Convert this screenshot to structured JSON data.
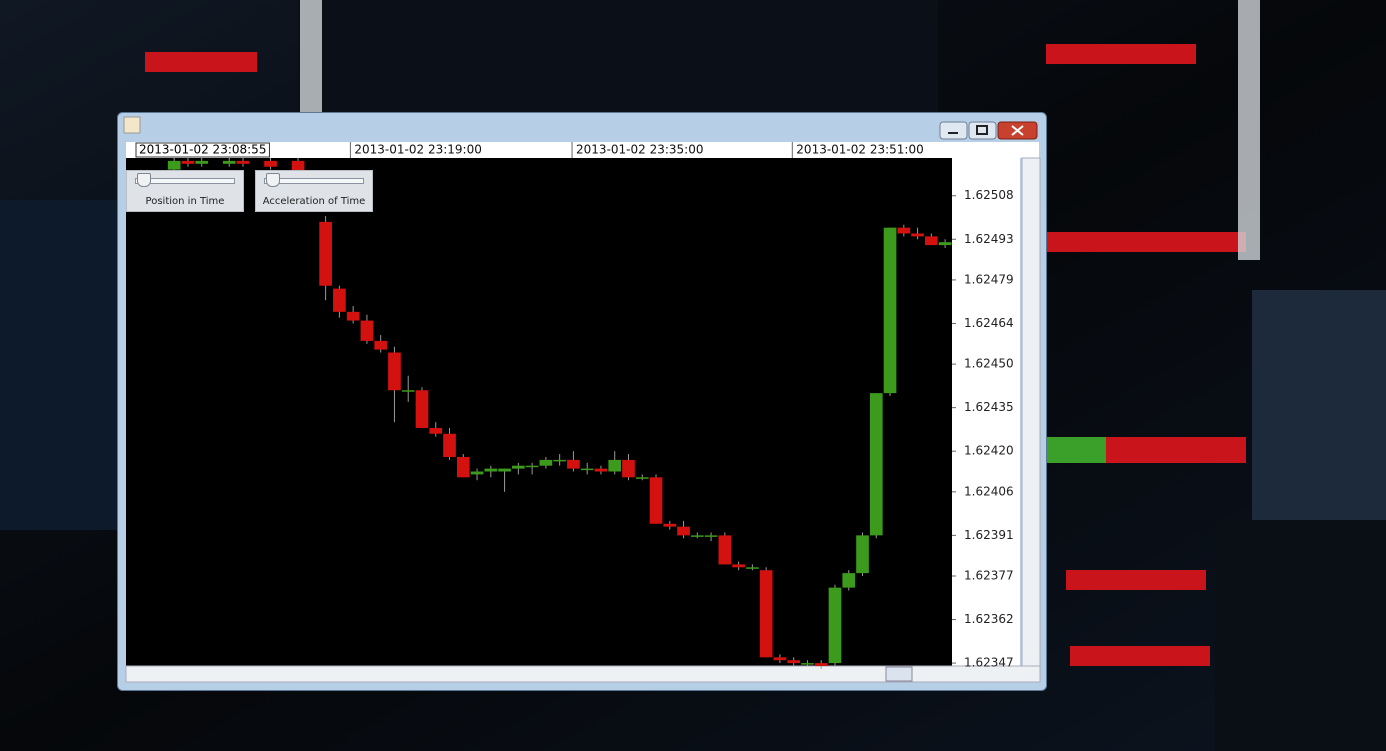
{
  "controls": {
    "sliders": [
      "Position in Time",
      "Acceleration of Time"
    ]
  },
  "chart_data": {
    "type": "candlestick",
    "cursor_label": "2013-01-02 23:08:55",
    "up_color": "#3c9a1c",
    "down_color": "#d3120f",
    "x": [
      3,
      4,
      5,
      7,
      8,
      10,
      12,
      14,
      15,
      16,
      17,
      18,
      19,
      20,
      21,
      22,
      23,
      24,
      25,
      26,
      27,
      28,
      29,
      30,
      31,
      32,
      33,
      34,
      35,
      36,
      37,
      38,
      39,
      40,
      41,
      42,
      43,
      44,
      45,
      46,
      47,
      48,
      49,
      50,
      51,
      52,
      53,
      54,
      55,
      56,
      57,
      58,
      59
    ],
    "open": [
      1.62517,
      1.6252,
      1.62519,
      1.62519,
      1.6252,
      1.6252,
      1.6252,
      1.62499,
      1.62476,
      1.62468,
      1.62465,
      1.62458,
      1.62454,
      1.62441,
      1.62441,
      1.62428,
      1.62426,
      1.62418,
      1.62412,
      1.62413,
      1.62413,
      1.62414,
      1.62415,
      1.62415,
      1.62417,
      1.62417,
      1.62414,
      1.62414,
      1.62413,
      1.62417,
      1.62411,
      1.62411,
      1.62395,
      1.62394,
      1.62391,
      1.62391,
      1.62391,
      1.62381,
      1.6238,
      1.62379,
      1.62349,
      1.62348,
      1.62347,
      1.62347,
      1.62347,
      1.62373,
      1.62378,
      1.62391,
      1.6244,
      1.62497,
      1.62495,
      1.62494,
      1.62491
    ],
    "high": [
      1.62521,
      1.62521,
      1.62521,
      1.62521,
      1.62521,
      1.62521,
      1.62521,
      1.62501,
      1.62477,
      1.6247,
      1.62467,
      1.6246,
      1.62456,
      1.62446,
      1.62442,
      1.6243,
      1.62428,
      1.62419,
      1.62414,
      1.62415,
      1.62414,
      1.62416,
      1.62416,
      1.62418,
      1.62419,
      1.6242,
      1.62416,
      1.62415,
      1.6242,
      1.62419,
      1.62412,
      1.62412,
      1.62396,
      1.62396,
      1.62392,
      1.62392,
      1.62392,
      1.62382,
      1.62381,
      1.6238,
      1.6235,
      1.62349,
      1.62348,
      1.62348,
      1.62374,
      1.62379,
      1.62392,
      1.6244,
      1.62497,
      1.62498,
      1.62497,
      1.62495,
      1.62493
    ],
    "low": [
      1.62516,
      1.62518,
      1.62518,
      1.62518,
      1.62518,
      1.62517,
      1.62515,
      1.62472,
      1.62466,
      1.62464,
      1.62457,
      1.62454,
      1.6243,
      1.62437,
      1.62428,
      1.62425,
      1.62417,
      1.62411,
      1.6241,
      1.62411,
      1.62406,
      1.62412,
      1.62412,
      1.62414,
      1.62415,
      1.62413,
      1.62412,
      1.62412,
      1.62412,
      1.6241,
      1.6241,
      1.62395,
      1.62393,
      1.6239,
      1.6239,
      1.62389,
      1.62381,
      1.62379,
      1.62379,
      1.62349,
      1.62347,
      1.62346,
      1.62346,
      1.62345,
      1.62346,
      1.62372,
      1.62377,
      1.6239,
      1.62439,
      1.62494,
      1.62493,
      1.62491,
      1.6249
    ],
    "close": [
      1.6252,
      1.62519,
      1.6252,
      1.6252,
      1.62519,
      1.62518,
      1.62516,
      1.62477,
      1.62468,
      1.62465,
      1.62458,
      1.62455,
      1.62441,
      1.62441,
      1.62428,
      1.62426,
      1.62418,
      1.62411,
      1.62413,
      1.62414,
      1.62414,
      1.62415,
      1.62415,
      1.62417,
      1.62417,
      1.62414,
      1.62414,
      1.62413,
      1.62417,
      1.62411,
      1.62411,
      1.62395,
      1.62394,
      1.62391,
      1.62391,
      1.62391,
      1.62381,
      1.6238,
      1.6238,
      1.62349,
      1.62348,
      1.62347,
      1.62347,
      1.62346,
      1.62373,
      1.62378,
      1.62391,
      1.6244,
      1.62497,
      1.62495,
      1.62494,
      1.62491,
      1.62492
    ],
    "xlim": [
      -0.5,
      59.5
    ],
    "xticks": [
      {
        "value": 15.8,
        "label": "2013-01-02 23:19:00"
      },
      {
        "value": 31.9,
        "label": "2013-01-02 23:35:00"
      },
      {
        "value": 47.9,
        "label": "2013-01-02 23:51:00"
      }
    ],
    "ylim": [
      1.62346,
      1.62521
    ],
    "yticks": [
      1.62508,
      1.62493,
      1.62479,
      1.62464,
      {
        "value": 1.6245,
        "label": "1.62450"
      },
      1.62435,
      {
        "value": 1.6242,
        "label": "1.62420"
      },
      1.62406,
      1.62391,
      1.62377,
      1.62362,
      1.62347
    ]
  }
}
